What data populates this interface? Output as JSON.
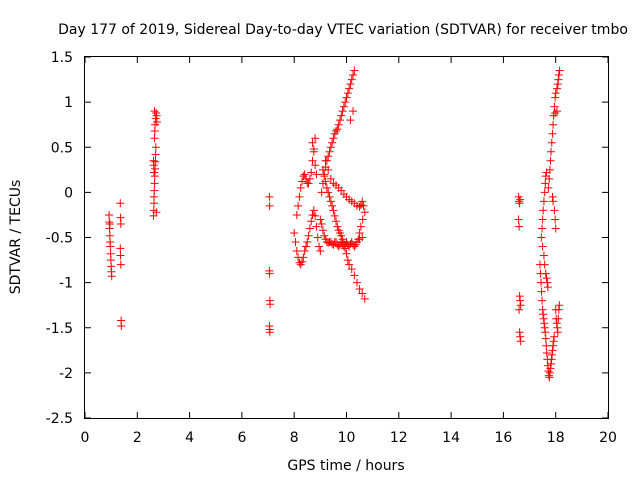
{
  "chart_data": {
    "type": "scatter",
    "title": "Day 177 of 2019, Sidereal Day-to-day VTEC variation (SDTVAR) for receiver tmbo",
    "xlabel": "GPS time / hours",
    "ylabel": "SDTVAR / TECUs",
    "xlim": [
      0,
      20
    ],
    "ylim": [
      -2.5,
      1.5
    ],
    "xticks": [
      "0",
      "2",
      "4",
      "6",
      "8",
      "10",
      "12",
      "14",
      "16",
      "18",
      "20"
    ],
    "yticks": [
      "1.5",
      "1",
      "0.5",
      "0",
      "-0.5",
      "-1",
      "-1.5",
      "-2",
      "-2.5"
    ],
    "grid": false,
    "marker": "+",
    "color": "#ff0000",
    "series": [
      {
        "name": "SDTVAR",
        "points": [
          [
            0.92,
            -0.25
          ],
          [
            0.93,
            -0.33
          ],
          [
            0.94,
            -0.4
          ],
          [
            0.95,
            -0.48
          ],
          [
            0.96,
            -0.55
          ],
          [
            0.97,
            -0.6
          ],
          [
            0.98,
            -0.68
          ],
          [
            0.99,
            -0.75
          ],
          [
            1.0,
            -0.82
          ],
          [
            1.01,
            -0.88
          ],
          [
            1.02,
            -0.93
          ],
          [
            0.95,
            -0.35
          ],
          [
            1.35,
            -0.12
          ],
          [
            1.36,
            -0.28
          ],
          [
            1.37,
            -0.35
          ],
          [
            1.35,
            -0.62
          ],
          [
            1.36,
            -0.7
          ],
          [
            1.37,
            -0.8
          ],
          [
            1.38,
            -1.42
          ],
          [
            1.39,
            -1.48
          ],
          [
            2.62,
            -0.26
          ],
          [
            2.63,
            -0.2
          ],
          [
            2.64,
            -0.12
          ],
          [
            2.64,
            -0.05
          ],
          [
            2.65,
            0.02
          ],
          [
            2.66,
            0.1
          ],
          [
            2.67,
            0.18
          ],
          [
            2.68,
            0.26
          ],
          [
            2.69,
            0.34
          ],
          [
            2.7,
            0.42
          ],
          [
            2.71,
            0.5
          ],
          [
            2.62,
            0.35
          ],
          [
            2.63,
            0.3
          ],
          [
            2.64,
            0.22
          ],
          [
            2.66,
            0.6
          ],
          [
            2.67,
            0.68
          ],
          [
            2.68,
            0.75
          ],
          [
            2.7,
            0.82
          ],
          [
            2.72,
            0.88
          ],
          [
            2.66,
            0.9
          ],
          [
            2.74,
            0.85
          ],
          [
            2.75,
            0.78
          ],
          [
            2.73,
            -0.22
          ],
          [
            7.05,
            -0.05
          ],
          [
            7.06,
            -0.15
          ],
          [
            7.05,
            -0.87
          ],
          [
            7.06,
            -0.9
          ],
          [
            7.07,
            -1.2
          ],
          [
            7.08,
            -1.24
          ],
          [
            7.05,
            -1.48
          ],
          [
            7.06,
            -1.52
          ],
          [
            7.07,
            -1.55
          ],
          [
            8.0,
            -0.45
          ],
          [
            8.05,
            -0.55
          ],
          [
            8.1,
            -0.65
          ],
          [
            8.15,
            -0.72
          ],
          [
            8.2,
            -0.78
          ],
          [
            8.25,
            -0.8
          ],
          [
            8.3,
            -0.77
          ],
          [
            8.35,
            -0.72
          ],
          [
            8.4,
            -0.65
          ],
          [
            8.45,
            -0.6
          ],
          [
            8.5,
            -0.55
          ],
          [
            8.55,
            -0.48
          ],
          [
            8.6,
            -0.4
          ],
          [
            8.65,
            -0.32
          ],
          [
            8.7,
            -0.25
          ],
          [
            8.75,
            -0.2
          ],
          [
            8.8,
            -0.26
          ],
          [
            8.85,
            -0.38
          ],
          [
            8.9,
            -0.5
          ],
          [
            8.95,
            -0.6
          ],
          [
            9.0,
            -0.65
          ],
          [
            8.1,
            -0.25
          ],
          [
            8.15,
            -0.15
          ],
          [
            8.2,
            -0.05
          ],
          [
            8.25,
            0.05
          ],
          [
            8.3,
            0.12
          ],
          [
            8.35,
            0.18
          ],
          [
            8.4,
            0.2
          ],
          [
            8.45,
            0.15
          ],
          [
            8.5,
            0.1
          ],
          [
            8.55,
            0.1
          ],
          [
            8.6,
            0.15
          ],
          [
            8.65,
            0.22
          ],
          [
            8.7,
            0.35
          ],
          [
            8.75,
            0.48
          ],
          [
            8.8,
            0.6
          ],
          [
            9.0,
            -0.3
          ],
          [
            9.05,
            -0.35
          ],
          [
            9.1,
            -0.42
          ],
          [
            9.15,
            -0.48
          ],
          [
            9.2,
            -0.52
          ],
          [
            9.25,
            -0.55
          ],
          [
            9.3,
            -0.56
          ],
          [
            9.35,
            -0.55
          ],
          [
            9.4,
            -0.55
          ],
          [
            9.45,
            -0.57
          ],
          [
            9.5,
            -0.58
          ],
          [
            9.55,
            -0.55
          ],
          [
            9.6,
            -0.55
          ],
          [
            9.65,
            -0.58
          ],
          [
            9.7,
            -0.6
          ],
          [
            9.75,
            -0.58
          ],
          [
            9.8,
            -0.55
          ],
          [
            9.85,
            -0.58
          ],
          [
            9.9,
            -0.6
          ],
          [
            9.95,
            -0.58
          ],
          [
            10.0,
            -0.55
          ],
          [
            10.05,
            -0.58
          ],
          [
            10.1,
            -0.6
          ],
          [
            10.15,
            -0.57
          ],
          [
            10.2,
            -0.55
          ],
          [
            10.25,
            -0.58
          ],
          [
            10.3,
            -0.6
          ],
          [
            10.35,
            -0.58
          ],
          [
            10.4,
            -0.55
          ],
          [
            10.5,
            -0.52
          ],
          [
            10.6,
            -0.5
          ],
          [
            9.05,
            0.0
          ],
          [
            9.1,
            0.1
          ],
          [
            9.15,
            0.2
          ],
          [
            9.2,
            0.28
          ],
          [
            9.25,
            0.35
          ],
          [
            9.3,
            0.4
          ],
          [
            9.35,
            0.45
          ],
          [
            9.4,
            0.5
          ],
          [
            9.45,
            0.55
          ],
          [
            9.5,
            0.6
          ],
          [
            9.55,
            0.65
          ],
          [
            9.6,
            0.68
          ],
          [
            9.65,
            0.7
          ],
          [
            9.7,
            0.75
          ],
          [
            9.75,
            0.8
          ],
          [
            9.8,
            0.85
          ],
          [
            9.85,
            0.9
          ],
          [
            9.9,
            0.95
          ],
          [
            9.95,
            1.0
          ],
          [
            10.0,
            1.05
          ],
          [
            10.05,
            1.1
          ],
          [
            10.1,
            1.15
          ],
          [
            10.15,
            1.2
          ],
          [
            10.2,
            1.25
          ],
          [
            10.25,
            1.3
          ],
          [
            10.3,
            1.35
          ],
          [
            10.25,
            0.9
          ],
          [
            10.15,
            0.8
          ],
          [
            9.1,
            0.25
          ],
          [
            9.15,
            0.18
          ],
          [
            9.2,
            0.12
          ],
          [
            9.25,
            0.05
          ],
          [
            9.3,
            0.0
          ],
          [
            9.35,
            -0.05
          ],
          [
            9.4,
            -0.1
          ],
          [
            9.45,
            -0.15
          ],
          [
            9.5,
            -0.2
          ],
          [
            9.55,
            -0.26
          ],
          [
            9.6,
            -0.32
          ],
          [
            9.65,
            -0.38
          ],
          [
            9.7,
            -0.42
          ],
          [
            9.75,
            -0.45
          ],
          [
            9.8,
            -0.48
          ],
          [
            9.85,
            -0.52
          ],
          [
            9.9,
            -0.56
          ],
          [
            9.95,
            -0.62
          ],
          [
            10.0,
            -0.68
          ],
          [
            10.05,
            -0.75
          ],
          [
            10.1,
            -0.8
          ],
          [
            10.2,
            -0.85
          ],
          [
            10.3,
            -0.92
          ],
          [
            10.4,
            -1.0
          ],
          [
            10.5,
            -1.07
          ],
          [
            10.6,
            -1.12
          ],
          [
            10.7,
            -1.18
          ],
          [
            9.2,
            0.35
          ],
          [
            9.3,
            0.25
          ],
          [
            9.4,
            0.15
          ],
          [
            9.5,
            0.1
          ],
          [
            9.6,
            0.08
          ],
          [
            9.7,
            0.05
          ],
          [
            9.8,
            0.02
          ],
          [
            9.9,
            -0.02
          ],
          [
            10.0,
            -0.05
          ],
          [
            10.1,
            -0.08
          ],
          [
            10.2,
            -0.1
          ],
          [
            10.3,
            -0.12
          ],
          [
            10.4,
            -0.15
          ],
          [
            10.5,
            -0.16
          ],
          [
            10.55,
            -0.14
          ],
          [
            10.6,
            -0.1
          ],
          [
            10.65,
            -0.15
          ],
          [
            10.7,
            -0.22
          ],
          [
            10.62,
            -0.3
          ],
          [
            10.55,
            -0.38
          ],
          [
            10.5,
            -0.45
          ],
          [
            10.45,
            -0.52
          ],
          [
            8.7,
            0.55
          ],
          [
            8.75,
            0.45
          ],
          [
            8.8,
            0.3
          ],
          [
            8.85,
            0.2
          ],
          [
            16.58,
            -0.05
          ],
          [
            16.6,
            -0.1
          ],
          [
            16.62,
            -0.12
          ],
          [
            16.64,
            -0.08
          ],
          [
            16.58,
            -0.3
          ],
          [
            16.6,
            -0.38
          ],
          [
            16.62,
            -1.15
          ],
          [
            16.64,
            -1.2
          ],
          [
            16.66,
            -1.25
          ],
          [
            16.6,
            -1.3
          ],
          [
            16.62,
            -1.55
          ],
          [
            16.64,
            -1.6
          ],
          [
            16.66,
            -1.65
          ],
          [
            17.4,
            -0.8
          ],
          [
            17.42,
            -0.9
          ],
          [
            17.44,
            -1.0
          ],
          [
            17.46,
            -1.1
          ],
          [
            17.48,
            -1.2
          ],
          [
            17.5,
            -1.3
          ],
          [
            17.52,
            -1.35
          ],
          [
            17.54,
            -1.4
          ],
          [
            17.56,
            -1.45
          ],
          [
            17.58,
            -1.5
          ],
          [
            17.6,
            -1.55
          ],
          [
            17.62,
            -1.62
          ],
          [
            17.64,
            -1.7
          ],
          [
            17.66,
            -1.78
          ],
          [
            17.68,
            -1.85
          ],
          [
            17.7,
            -1.92
          ],
          [
            17.72,
            -1.98
          ],
          [
            17.74,
            -2.03
          ],
          [
            17.76,
            -2.05
          ],
          [
            17.78,
            -2.0
          ],
          [
            17.8,
            -1.95
          ],
          [
            17.82,
            -1.9
          ],
          [
            17.84,
            -1.85
          ],
          [
            17.86,
            -1.8
          ],
          [
            17.88,
            -1.75
          ],
          [
            17.9,
            -1.7
          ],
          [
            17.92,
            -1.65
          ],
          [
            17.94,
            -1.6
          ],
          [
            17.45,
            -0.5
          ],
          [
            17.48,
            -0.4
          ],
          [
            17.5,
            -0.3
          ],
          [
            17.52,
            -0.2
          ],
          [
            17.55,
            -0.1
          ],
          [
            17.58,
            0.0
          ],
          [
            17.6,
            0.1
          ],
          [
            17.62,
            0.18
          ],
          [
            17.65,
            0.22
          ],
          [
            17.5,
            -0.6
          ],
          [
            17.55,
            -0.7
          ],
          [
            17.58,
            -0.8
          ],
          [
            17.62,
            -0.9
          ],
          [
            17.65,
            -0.95
          ],
          [
            17.68,
            -1.0
          ],
          [
            17.7,
            -1.05
          ],
          [
            17.72,
            0.05
          ],
          [
            17.75,
            0.15
          ],
          [
            17.78,
            0.25
          ],
          [
            17.8,
            0.35
          ],
          [
            17.82,
            0.45
          ],
          [
            17.85,
            0.55
          ],
          [
            17.88,
            0.65
          ],
          [
            17.9,
            0.75
          ],
          [
            17.92,
            0.85
          ],
          [
            17.95,
            0.95
          ],
          [
            17.98,
            1.05
          ],
          [
            18.0,
            1.1
          ],
          [
            18.05,
            1.15
          ],
          [
            18.08,
            1.2
          ],
          [
            18.1,
            1.25
          ],
          [
            18.12,
            1.3
          ],
          [
            18.15,
            1.35
          ],
          [
            18.05,
            0.9
          ],
          [
            17.98,
            0.88
          ],
          [
            18.0,
            -1.3
          ],
          [
            18.02,
            -1.4
          ],
          [
            18.04,
            -1.45
          ],
          [
            18.06,
            -1.5
          ],
          [
            18.08,
            -1.55
          ],
          [
            18.1,
            -1.4
          ],
          [
            18.12,
            -1.3
          ],
          [
            18.14,
            -1.25
          ],
          [
            17.95,
            -0.2
          ],
          [
            17.98,
            -0.3
          ],
          [
            18.0,
            -0.4
          ],
          [
            17.9,
            -0.1
          ],
          [
            17.88,
            -0.05
          ]
        ]
      }
    ]
  }
}
